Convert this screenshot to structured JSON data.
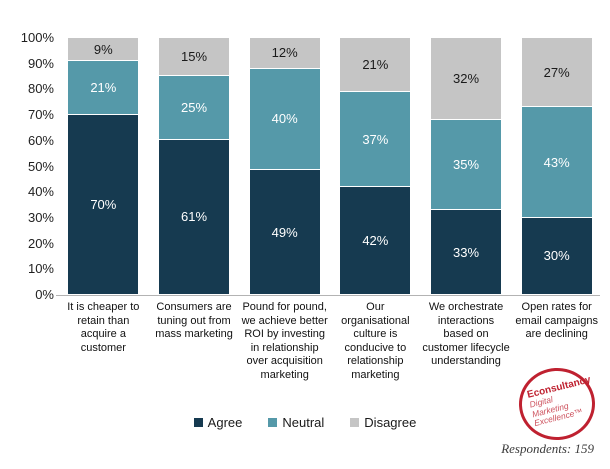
{
  "chart_data": {
    "type": "bar",
    "stacked": true,
    "orientation": "vertical",
    "grid": false,
    "legend_position": "bottom",
    "ylim": [
      0,
      100
    ],
    "y_ticks": [
      "100%",
      "90%",
      "80%",
      "70%",
      "60%",
      "50%",
      "40%",
      "30%",
      "20%",
      "10%",
      "0%"
    ],
    "categories": [
      "It is cheaper to retain than acquire a customer",
      "Consumers are tuning out from mass marketing",
      "Pound for pound, we achieve better ROI by investing in relationship over acquisition marketing",
      "Our organisational culture is conducive to relationship marketing",
      "We orchestrate interactions based on customer lifecycle understanding",
      "Open rates for email campaigns are declining"
    ],
    "series": [
      {
        "name": "Agree",
        "color": "#163a50",
        "label_color": "#ffffff",
        "values": [
          70,
          61,
          49,
          42,
          33,
          30
        ]
      },
      {
        "name": "Neutral",
        "color": "#5599a9",
        "label_color": "#ffffff",
        "values": [
          21,
          25,
          40,
          37,
          35,
          43
        ]
      },
      {
        "name": "Disagree",
        "color": "#c5c5c5",
        "label_color": "#1a1a1a",
        "values": [
          9,
          15,
          12,
          21,
          32,
          27
        ]
      }
    ]
  },
  "logo": {
    "title": "Econsultancy",
    "lines": [
      "Digital",
      "Marketing",
      "Excellence™"
    ],
    "color": "#bf2130"
  },
  "footer": {
    "respondents_label": "Respondents: 159"
  }
}
